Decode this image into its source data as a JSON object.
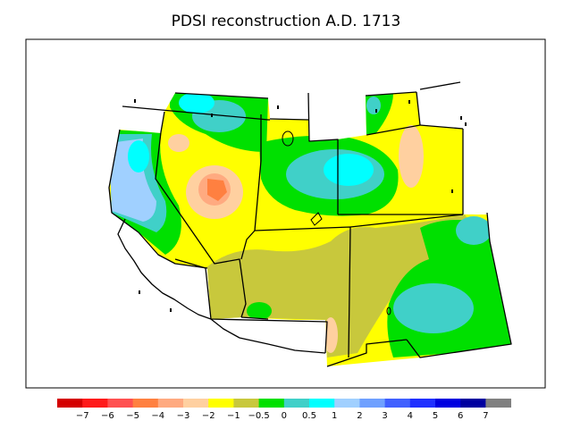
{
  "title": "PDSI reconstruction A.D. 1713",
  "legend": {
    "colors": [
      "#d40000",
      "#ff1a1a",
      "#ff5050",
      "#ff8040",
      "#ffaa80",
      "#ffd0a0",
      "#ffff00",
      "#c8c83c",
      "#00e000",
      "#40d0c8",
      "#00ffff",
      "#a0d0ff",
      "#6fa0ff",
      "#4060ff",
      "#2030ff",
      "#0000e0",
      "#0000a0",
      "#808080"
    ],
    "tick_labels": [
      "−7",
      "−6",
      "−5",
      "−4",
      "−3",
      "−2",
      "−1",
      "−0.5",
      "0",
      "0.5",
      "1",
      "2",
      "3",
      "4",
      "5",
      "6",
      "7"
    ]
  },
  "map": {
    "palette": {
      "neutral_yellow": "#ffff00",
      "olive": "#c8c83c",
      "green": "#00e000",
      "teal": "#40d0c8",
      "cyan": "#00ffff",
      "light_blue": "#a0d0ff",
      "peach": "#ffd0a0",
      "salmon": "#ffaa80",
      "orange": "#ff8040",
      "outline": "#000000"
    }
  }
}
